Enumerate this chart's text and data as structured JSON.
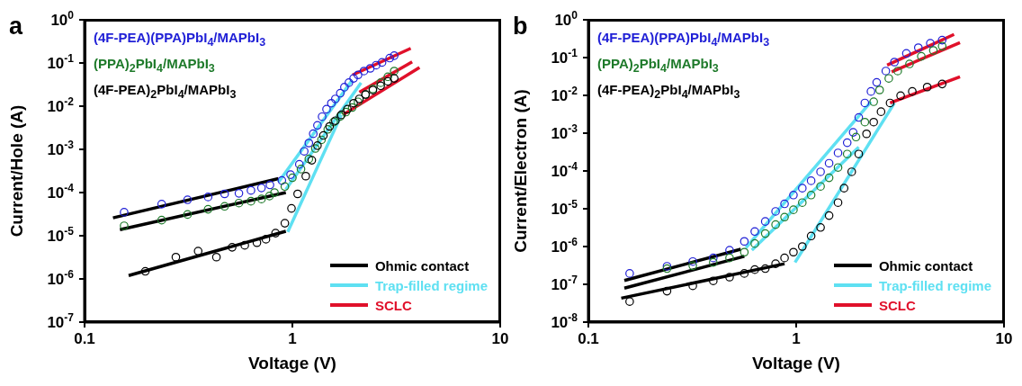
{
  "chart_data": [
    {
      "type": "scatter",
      "title": "a",
      "xlabel": "Voltage (V)",
      "ylabel": "Current/Hole (A)",
      "log": "xy",
      "grid": false,
      "legend": "bottom right",
      "marker": "circle",
      "xlim": [
        0.1,
        10
      ],
      "xticks": [
        0.1,
        1,
        10
      ],
      "ylim": [
        1e-07,
        1
      ],
      "yticks": [
        {
          "value": 1e-07,
          "label": "10$^{-7}$"
        },
        {
          "value": 1e-06,
          "label": "10$^{-6}$"
        },
        {
          "value": 1e-05,
          "label": "10$^{-5}$"
        },
        {
          "value": 0.0001,
          "label": "10$^{-4}$"
        },
        {
          "value": 0.001,
          "label": "10$^{-3}$"
        },
        {
          "value": 0.01,
          "label": "10$^{-2}$"
        },
        {
          "value": 0.1,
          "label": "10$^{-1}$"
        },
        {
          "value": 1,
          "label": "10$^{0}$"
        }
      ],
      "series": [
        {
          "name": "(4F-PEA)(PPA)PbI$_{4}$/MAPbI$_{3}$",
          "color": "#1f1fd6",
          "x": [
            0.155,
            0.235,
            0.313,
            0.393,
            0.472,
            0.553,
            0.632,
            0.71,
            0.78,
            0.89,
            0.98,
            1.08,
            1.14,
            1.2,
            1.26,
            1.32,
            1.39,
            1.46,
            1.54,
            1.61,
            1.7,
            1.78,
            1.87,
            1.97,
            2.07,
            2.21,
            2.37,
            2.53,
            2.7,
            2.94,
            3.09
          ],
          "values": [
            3.5e-05,
            5.4e-05,
            6.8e-05,
            7.9e-05,
            9.3e-05,
            9.6e-05,
            0.000112,
            0.000128,
            0.00015,
            0.00019,
            0.00026,
            0.00045,
            0.0009,
            0.0014,
            0.0023,
            0.0036,
            0.0057,
            0.0085,
            0.0117,
            0.0147,
            0.02,
            0.0275,
            0.035,
            0.044,
            0.053,
            0.065,
            0.075,
            0.089,
            0.103,
            0.13,
            0.148
          ]
        },
        {
          "name": "(PPA)$_{2}$PbI$_{4}$/MAPbI$_{3}$",
          "color": "#1e7a2a",
          "x": [
            0.155,
            0.235,
            0.313,
            0.393,
            0.472,
            0.553,
            0.632,
            0.71,
            0.776,
            0.82,
            0.92,
            1.0,
            1.1,
            1.2,
            1.29,
            1.38,
            1.48,
            1.58,
            1.7,
            1.81,
            1.94,
            2.07,
            2.25,
            2.44,
            2.66,
            2.88,
            3.09
          ],
          "values": [
            1.7e-05,
            2.3e-05,
            3.1e-05,
            4.1e-05,
            4.8e-05,
            5.7e-05,
            6.3e-05,
            7.1e-05,
            8.3e-05,
            0.0001,
            0.000138,
            0.00022,
            0.00035,
            0.0006,
            0.00105,
            0.00166,
            0.0029,
            0.0043,
            0.0058,
            0.0073,
            0.0093,
            0.0126,
            0.0186,
            0.025,
            0.035,
            0.048,
            0.065
          ]
        },
        {
          "name": "(4F-PEA)$_{2}$PbI$_{4}$/MAPbI$_{3}$",
          "color": "#000000",
          "x": [
            0.196,
            0.275,
            0.352,
            0.431,
            0.513,
            0.59,
            0.675,
            0.746,
            0.83,
            0.92,
            0.99,
            1.06,
            1.16,
            1.24,
            1.32,
            1.41,
            1.51,
            1.61,
            1.72,
            1.84,
            1.97,
            2.1,
            2.25,
            2.44,
            2.66,
            2.88,
            3.09
          ],
          "values": [
            1.5e-06,
            3.2e-06,
            4.4e-06,
            3.2e-06,
            5.4e-06,
            6e-06,
            6.9e-06,
            8.3e-06,
            1.15e-05,
            1.95e-05,
            4.3e-05,
            9.3e-05,
            0.00024,
            0.00056,
            0.00122,
            0.0021,
            0.0034,
            0.0046,
            0.0063,
            0.0085,
            0.0117,
            0.0147,
            0.0186,
            0.0235,
            0.0297,
            0.0375,
            0.044
          ]
        },
        {
          "type": "line",
          "name": "Ohmic contact",
          "color": "#000000",
          "marker": "none",
          "x": [
            0.137,
            0.857
          ],
          "values": [
            2.6e-05,
            0.00021
          ]
        },
        {
          "type": "line",
          "color": "#000000",
          "marker": "none",
          "x": [
            0.148,
            0.93
          ],
          "values": [
            1.38e-05,
            0.0001
          ]
        },
        {
          "type": "line",
          "color": "#000000",
          "marker": "none",
          "x": [
            0.163,
            0.93
          ],
          "values": [
            1.2e-06,
            1.27e-05
          ]
        },
        {
          "type": "line",
          "name": "Trap-filled regime",
          "color": "#5ee0f2",
          "marker": "none",
          "x": [
            0.857,
            1.94
          ],
          "values": [
            0.000174,
            0.04
          ]
        },
        {
          "type": "line",
          "color": "#5ee0f2",
          "marker": "none",
          "x": [
            0.93,
            2.14
          ],
          "values": [
            0.000118,
            0.035
          ]
        },
        {
          "type": "line",
          "color": "#5ee0f2",
          "marker": "none",
          "x": [
            0.95,
            1.72
          ],
          "values": [
            1.23e-05,
            0.0063
          ]
        },
        {
          "type": "line",
          "name": "SCLC",
          "color": "#e0102a",
          "marker": "none",
          "x": [
            1.95,
            3.71
          ],
          "values": [
            0.053,
            0.218
          ]
        },
        {
          "type": "line",
          "color": "#e0102a",
          "marker": "none",
          "x": [
            2.1,
            3.77
          ],
          "values": [
            0.021,
            0.106
          ]
        },
        {
          "type": "line",
          "color": "#e0102a",
          "marker": "none",
          "x": [
            1.75,
            4.09
          ],
          "values": [
            0.0063,
            0.079
          ]
        }
      ]
    },
    {
      "type": "scatter",
      "title": "b",
      "xlabel": "Voltage (V)",
      "ylabel": "Current/Electron (A)",
      "log": "xy",
      "grid": false,
      "legend": "bottom right",
      "marker": "circle",
      "xlim": [
        0.1,
        10
      ],
      "xticks": [
        0.1,
        1,
        10
      ],
      "ylim": [
        1e-08,
        1
      ],
      "yticks": [
        {
          "value": 1e-08,
          "label": "10$^{-8}$"
        },
        {
          "value": 1e-07,
          "label": "10$^{-7}$"
        },
        {
          "value": 1e-06,
          "label": "10$^{-6}$"
        },
        {
          "value": 1e-05,
          "label": "10$^{-5}$"
        },
        {
          "value": 0.0001,
          "label": "10$^{-4}$"
        },
        {
          "value": 0.001,
          "label": "10$^{-3}$"
        },
        {
          "value": 0.01,
          "label": "10$^{-2}$"
        },
        {
          "value": 0.1,
          "label": "10$^{-1}$"
        },
        {
          "value": 1,
          "label": "10$^{0}$"
        }
      ],
      "series": [
        {
          "name": "(4F-PEA)(PPA)PbI$_{4}$/MAPbI$_{3}$",
          "color": "#1f1fd6",
          "x": [
            0.158,
            0.239,
            0.318,
            0.399,
            0.478,
            0.563,
            0.632,
            0.71,
            0.796,
            0.879,
            0.97,
            1.07,
            1.18,
            1.31,
            1.44,
            1.59,
            1.76,
            1.88,
            2.0,
            2.14,
            2.29,
            2.44,
            2.7,
            2.97,
            3.39,
            3.87,
            4.42,
            5.04
          ],
          "values": [
            1.94e-07,
            3e-07,
            4e-07,
            5e-07,
            8e-07,
            1.37e-06,
            2.5e-06,
            4.6e-06,
            8.5e-06,
            1.35e-05,
            2.3e-05,
            3.5e-05,
            5.5e-05,
            9.5e-05,
            0.00016,
            0.0003,
            0.00056,
            0.00105,
            0.0026,
            0.0063,
            0.0127,
            0.022,
            0.044,
            0.076,
            0.129,
            0.183,
            0.24,
            0.29
          ]
        },
        {
          "name": "(PPA)$_{2}$PbI$_{4}$/MAPbI$_{3}$",
          "color": "#1e7a2a",
          "x": [
            0.239,
            0.318,
            0.399,
            0.478,
            0.563,
            0.632,
            0.71,
            0.796,
            0.879,
            0.97,
            1.07,
            1.18,
            1.31,
            1.44,
            1.59,
            1.76,
            1.94,
            2.14,
            2.36,
            2.52,
            2.79,
            3.08,
            3.51,
            4.0,
            4.57,
            5.04
          ],
          "values": [
            2.6e-07,
            3.1e-07,
            3.8e-07,
            5e-07,
            7.1e-07,
            1.2e-06,
            2.2e-06,
            3.8e-06,
            6e-06,
            9.4e-06,
            1.45e-05,
            2.3e-05,
            3.9e-05,
            6.6e-05,
            0.000123,
            0.00028,
            0.00079,
            0.00196,
            0.0068,
            0.0139,
            0.028,
            0.044,
            0.068,
            0.108,
            0.155,
            0.2
          ]
        },
        {
          "name": "(4F-PEA)$_{2}$PbI$_{4}$/MAPbI$_{3}$",
          "color": "#000000",
          "x": [
            0.158,
            0.239,
            0.318,
            0.399,
            0.478,
            0.563,
            0.632,
            0.71,
            0.796,
            0.879,
            0.97,
            1.07,
            1.18,
            1.31,
            1.44,
            1.59,
            1.7,
            1.85,
            2.0,
            2.18,
            2.36,
            2.56,
            2.83,
            3.18,
            3.62,
            4.27,
            5.04
          ],
          "values": [
            3.5e-08,
            6.6e-08,
            9.1e-08,
            1.23e-07,
            1.55e-07,
            1.94e-07,
            2.45e-07,
            2.6e-07,
            3.5e-07,
            5e-07,
            7.1e-07,
            1e-06,
            1.9e-06,
            3.2e-06,
            6.6e-06,
            1.45e-05,
            3.5e-05,
            9.5e-05,
            0.00028,
            0.00096,
            0.00196,
            0.0037,
            0.0063,
            0.0098,
            0.0127,
            0.0166,
            0.02
          ]
        },
        {
          "type": "line",
          "name": "Ohmic contact",
          "color": "#000000",
          "marker": "none",
          "x": [
            0.149,
            0.541
          ],
          "values": [
            1.26e-07,
            8.5e-07
          ]
        },
        {
          "type": "line",
          "color": "#000000",
          "marker": "none",
          "x": [
            0.149,
            0.563
          ],
          "values": [
            7.9e-08,
            5.5e-07
          ]
        },
        {
          "type": "line",
          "color": "#000000",
          "marker": "none",
          "x": [
            0.144,
            0.879
          ],
          "values": [
            4.3e-08,
            3.5e-07
          ]
        },
        {
          "type": "line",
          "name": "Trap-filled regime",
          "color": "#5ee0f2",
          "marker": "none",
          "x": [
            0.573,
            2.29
          ],
          "values": [
            9.3e-07,
            0.0068
          ]
        },
        {
          "type": "line",
          "color": "#5ee0f2",
          "marker": "none",
          "x": [
            0.612,
            2.0
          ],
          "values": [
            8e-07,
            0.00043
          ]
        },
        {
          "type": "line",
          "color": "#5ee0f2",
          "marker": "none",
          "x": [
            0.987,
            2.97
          ],
          "values": [
            3.8e-07,
            0.0063
          ]
        },
        {
          "type": "line",
          "name": "SCLC",
          "color": "#e0102a",
          "marker": "none",
          "x": [
            2.74,
            5.75
          ],
          "values": [
            0.063,
            0.41
          ]
        },
        {
          "type": "line",
          "color": "#e0102a",
          "marker": "none",
          "x": [
            2.88,
            6.14
          ],
          "values": [
            0.042,
            0.25
          ]
        },
        {
          "type": "line",
          "color": "#e0102a",
          "marker": "none",
          "x": [
            2.83,
            6.14
          ],
          "values": [
            0.0063,
            0.031
          ]
        }
      ]
    }
  ]
}
